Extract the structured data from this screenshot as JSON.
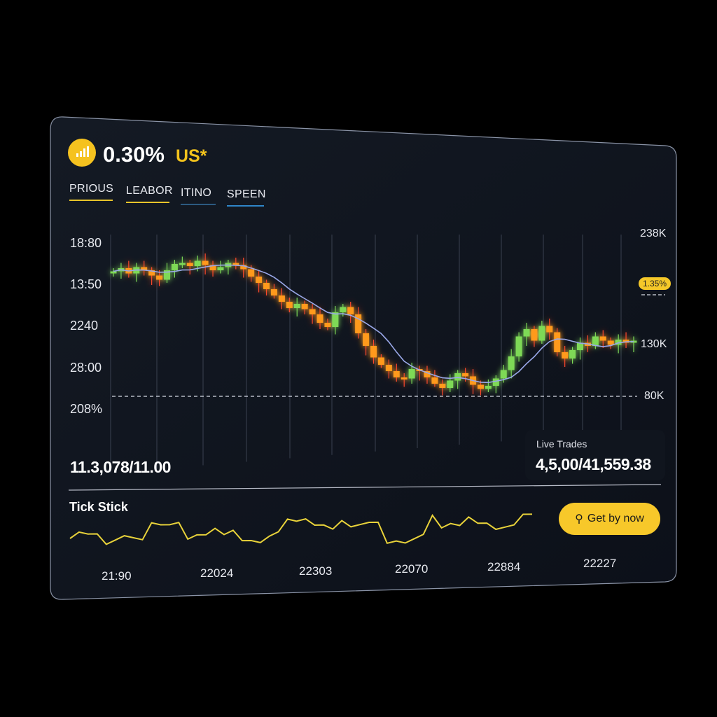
{
  "header": {
    "logo_icon": "bar-signal-icon",
    "value": "0.30%",
    "currency": "US*"
  },
  "tabs": [
    {
      "label": "PRIOUS",
      "color": "#e8c42a"
    },
    {
      "label": "LEABOR",
      "color": "#e8c42a"
    },
    {
      "label": "ITINO",
      "color": "#2c5a80"
    },
    {
      "label": "SPEEN",
      "color": "#2f86c8"
    }
  ],
  "left_axis": [
    "18:80",
    "13:50",
    "2240",
    "28:00",
    "208%"
  ],
  "right_axis": {
    "top": "238K",
    "mid": "130K",
    "low": "80K",
    "badge": "1.35%"
  },
  "colors": {
    "up": "#7ed957",
    "down": "#ff9a1f",
    "wick_down": "#ff4a2a",
    "ma": "#9aa8e8",
    "accent": "#f7c82a"
  },
  "chart_data": {
    "type": "candlestick",
    "y_unit": "K",
    "closes": [
      199,
      202,
      197,
      203,
      200,
      195,
      191,
      200,
      206,
      207,
      204,
      209,
      205,
      200,
      203,
      207,
      205,
      201,
      194,
      188,
      182,
      176,
      170,
      164,
      168,
      163,
      158,
      150,
      146,
      160,
      165,
      158,
      140,
      128,
      117,
      110,
      104,
      98,
      97,
      106,
      104,
      98,
      92,
      88,
      95,
      102,
      99,
      91,
      87,
      90,
      97,
      105,
      118,
      137,
      144,
      133,
      147,
      141,
      122,
      116,
      124,
      131,
      128,
      137,
      133,
      129,
      134,
      131,
      133
    ]
  },
  "stats": {
    "left_value": "11.3,078/11.00",
    "live_label": "Live Trades",
    "live_value": "4,5,00/41,559.38"
  },
  "tick": {
    "title": "Tick Stick",
    "values": [
      5,
      8,
      7,
      7,
      2,
      4,
      6,
      5,
      4,
      12,
      11,
      11,
      12,
      4,
      6,
      6,
      9,
      6,
      8,
      3,
      3,
      2,
      5,
      7,
      13,
      12,
      13,
      10,
      10,
      8,
      12,
      9,
      10,
      11,
      11,
      1,
      2,
      1,
      3,
      5,
      14,
      8,
      10,
      9,
      13,
      10,
      10,
      7,
      8,
      9,
      14,
      14
    ],
    "labels": [
      "21:90",
      "22024",
      "22303",
      "22070",
      "22884",
      "22227"
    ]
  },
  "buy_button": {
    "label": "Get by now",
    "icon": "search-icon"
  }
}
